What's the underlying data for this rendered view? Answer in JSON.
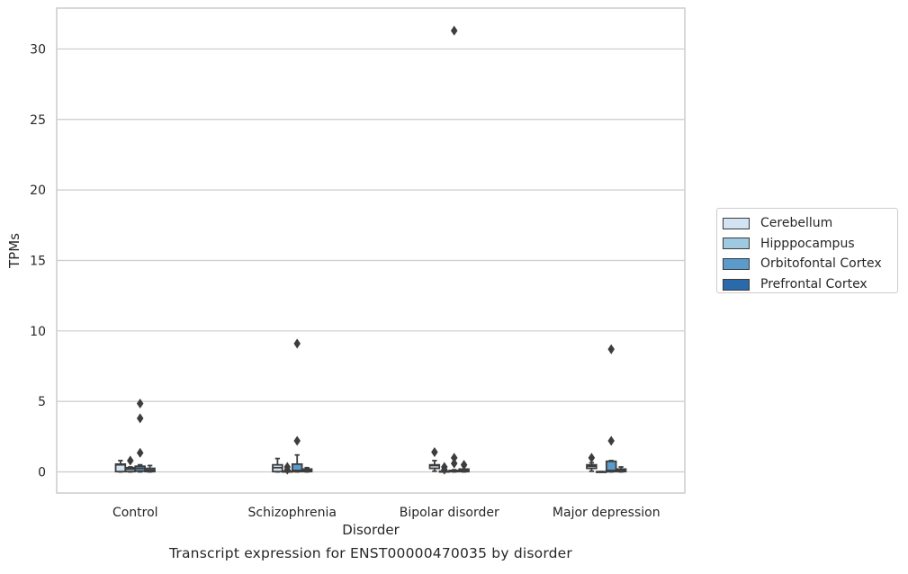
{
  "chart_data": {
    "type": "box",
    "title": "Transcript expression for ENST00000470035 by disorder",
    "xlabel": "Disorder",
    "ylabel": "TPMs",
    "ylim": [
      -1.5,
      32.9
    ],
    "yticks": [
      0,
      5,
      10,
      15,
      20,
      25,
      30
    ],
    "grid": "horizontal",
    "legend_placement": "right-center",
    "categories": [
      "Control",
      "Schizophrenia",
      "Bipolar disorder",
      "Major depression"
    ],
    "series": [
      {
        "name": "Cerebellum",
        "color": "#d2e3f3",
        "boxes": [
          {
            "category": "Control",
            "whisker_low": 0,
            "q1": 0.02,
            "median": 0.5,
            "q3": 0.55,
            "whisker_high": 0.8,
            "outliers": []
          },
          {
            "category": "Schizophrenia",
            "whisker_low": 0,
            "q1": 0.02,
            "median": 0.3,
            "q3": 0.5,
            "whisker_high": 0.95,
            "outliers": []
          },
          {
            "category": "Bipolar disorder",
            "whisker_low": 0.05,
            "q1": 0.25,
            "median": 0.45,
            "q3": 0.5,
            "whisker_high": 0.8,
            "outliers": [
              1.4
            ]
          },
          {
            "category": "Major depression",
            "whisker_low": 0.05,
            "q1": 0.25,
            "median": 0.4,
            "q3": 0.5,
            "whisker_high": 0.65,
            "outliers": [
              1.0
            ]
          }
        ]
      },
      {
        "name": "Hipppocampus",
        "color": "#9ecae1",
        "boxes": [
          {
            "category": "Control",
            "whisker_low": 0,
            "q1": 0.02,
            "median": 0.2,
            "q3": 0.3,
            "whisker_high": 0.35,
            "outliers": [
              0.8
            ]
          },
          {
            "category": "Schizophrenia",
            "whisker_low": 0,
            "q1": 0,
            "median": 0,
            "q3": 0.05,
            "whisker_high": 0.1,
            "outliers": [
              0.15,
              0.35
            ]
          },
          {
            "category": "Bipolar disorder",
            "whisker_low": 0,
            "q1": 0,
            "median": 0,
            "q3": 0.05,
            "whisker_high": 0.1,
            "outliers": [
              0.15,
              0.35
            ]
          },
          {
            "category": "Major depression",
            "whisker_low": 0,
            "q1": 0,
            "median": 0,
            "q3": 0.02,
            "whisker_high": 0.02,
            "outliers": []
          }
        ]
      },
      {
        "name": "Orbitofontal Cortex",
        "color": "#5a9bcb",
        "boxes": [
          {
            "category": "Control",
            "whisker_low": 0,
            "q1": 0.05,
            "median": 0.25,
            "q3": 0.4,
            "whisker_high": 0.5,
            "outliers": [
              1.35,
              3.8,
              4.85
            ]
          },
          {
            "category": "Schizophrenia",
            "whisker_low": 0,
            "q1": 0.02,
            "median": 0.1,
            "q3": 0.55,
            "whisker_high": 1.2,
            "outliers": [
              2.2,
              9.1
            ]
          },
          {
            "category": "Bipolar disorder",
            "whisker_low": 0,
            "q1": 0.02,
            "median": 0.05,
            "q3": 0.1,
            "whisker_high": 0.15,
            "outliers": [
              0.6,
              1.0,
              31.3
            ]
          },
          {
            "category": "Major depression",
            "whisker_low": 0,
            "q1": 0.02,
            "median": 0.1,
            "q3": 0.75,
            "whisker_high": 0.8,
            "outliers": [
              2.2,
              8.7
            ]
          }
        ]
      },
      {
        "name": "Prefrontal Cortex",
        "color": "#2b6aaa",
        "boxes": [
          {
            "category": "Control",
            "whisker_low": 0,
            "q1": 0.02,
            "median": 0.1,
            "q3": 0.25,
            "whisker_high": 0.45,
            "outliers": []
          },
          {
            "category": "Schizophrenia",
            "whisker_low": 0,
            "q1": 0.02,
            "median": 0.1,
            "q3": 0.2,
            "whisker_high": 0.3,
            "outliers": []
          },
          {
            "category": "Bipolar disorder",
            "whisker_low": 0,
            "q1": 0.02,
            "median": 0.1,
            "q3": 0.2,
            "whisker_high": 0.4,
            "outliers": [
              0.5
            ]
          },
          {
            "category": "Major depression",
            "whisker_low": 0,
            "q1": 0.02,
            "median": 0.1,
            "q3": 0.2,
            "whisker_high": 0.35,
            "outliers": []
          }
        ]
      }
    ]
  }
}
